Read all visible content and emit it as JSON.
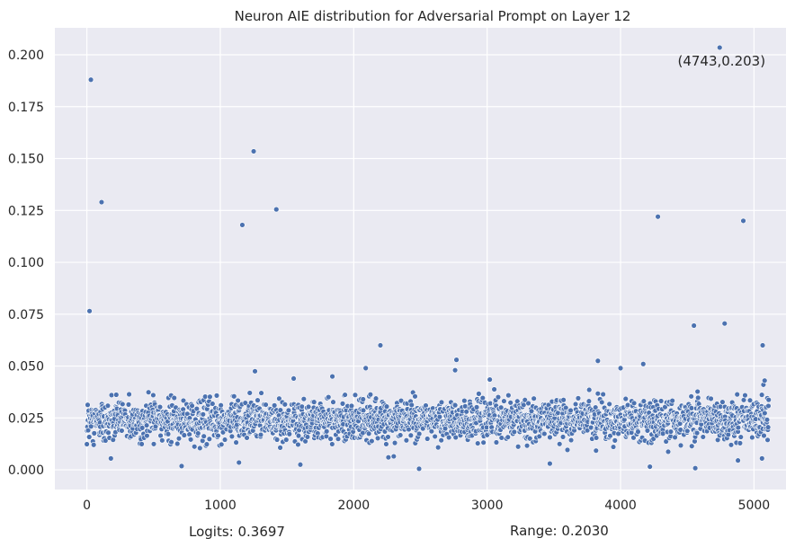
{
  "chart_data": {
    "type": "scatter",
    "title": "Neuron AIE distribution for Adversarial Prompt on Layer 12",
    "xlabel": "",
    "ylabel": "",
    "xlim": [
      -240,
      5240
    ],
    "ylim": [
      -0.0095,
      0.213
    ],
    "x_ticks": [
      0,
      1000,
      2000,
      3000,
      4000,
      5000
    ],
    "y_ticks": [
      0.0,
      0.025,
      0.05,
      0.075,
      0.1,
      0.125,
      0.15,
      0.175,
      0.2
    ],
    "y_tick_labels": [
      "0.000",
      "0.025",
      "0.050",
      "0.075",
      "0.100",
      "0.125",
      "0.150",
      "0.175",
      "0.200"
    ],
    "grid": true,
    "marker_color": "#4c72b0",
    "background_color": "#eaeaf2",
    "grid_color": "#ffffff",
    "outliers": [
      {
        "x": 30,
        "y": 0.188
      },
      {
        "x": 20,
        "y": 0.0765
      },
      {
        "x": 110,
        "y": 0.129
      },
      {
        "x": 1165,
        "y": 0.118
      },
      {
        "x": 1250,
        "y": 0.1535
      },
      {
        "x": 1420,
        "y": 0.1255
      },
      {
        "x": 4280,
        "y": 0.122
      },
      {
        "x": 4743,
        "y": 0.2035
      },
      {
        "x": 4920,
        "y": 0.12
      },
      {
        "x": 4550,
        "y": 0.0695
      },
      {
        "x": 4780,
        "y": 0.0705
      },
      {
        "x": 5065,
        "y": 0.06
      },
      {
        "x": 2200,
        "y": 0.06
      },
      {
        "x": 2770,
        "y": 0.053
      },
      {
        "x": 3830,
        "y": 0.0525
      },
      {
        "x": 4170,
        "y": 0.051
      },
      {
        "x": 4000,
        "y": 0.049
      },
      {
        "x": 2090,
        "y": 0.049
      },
      {
        "x": 1260,
        "y": 0.0475
      },
      {
        "x": 2760,
        "y": 0.048
      },
      {
        "x": 1840,
        "y": 0.045
      },
      {
        "x": 5080,
        "y": 0.043
      },
      {
        "x": 3020,
        "y": 0.0435
      },
      {
        "x": 1550,
        "y": 0.044
      },
      {
        "x": 2490,
        "y": 0.0005
      },
      {
        "x": 710,
        "y": 0.0018
      },
      {
        "x": 1140,
        "y": 0.0035
      },
      {
        "x": 4220,
        "y": 0.0015
      },
      {
        "x": 4560,
        "y": 0.0008
      },
      {
        "x": 1600,
        "y": 0.0025
      },
      {
        "x": 3470,
        "y": 0.003
      },
      {
        "x": 4880,
        "y": 0.0045
      },
      {
        "x": 5060,
        "y": 0.0055
      },
      {
        "x": 180,
        "y": 0.0055
      },
      {
        "x": 2260,
        "y": 0.006
      },
      {
        "x": 2300,
        "y": 0.0065
      }
    ],
    "dense_band": {
      "x_range": [
        0,
        5110
      ],
      "center": 0.024,
      "spread": 0.0045,
      "count": 2600,
      "seed": 12
    },
    "annotations": [
      {
        "text": "(4743,0.203)",
        "x": 4743,
        "y": 0.2035
      }
    ]
  },
  "footer": {
    "logits": "Logits: 0.3697",
    "range": "Range: 0.2030"
  }
}
